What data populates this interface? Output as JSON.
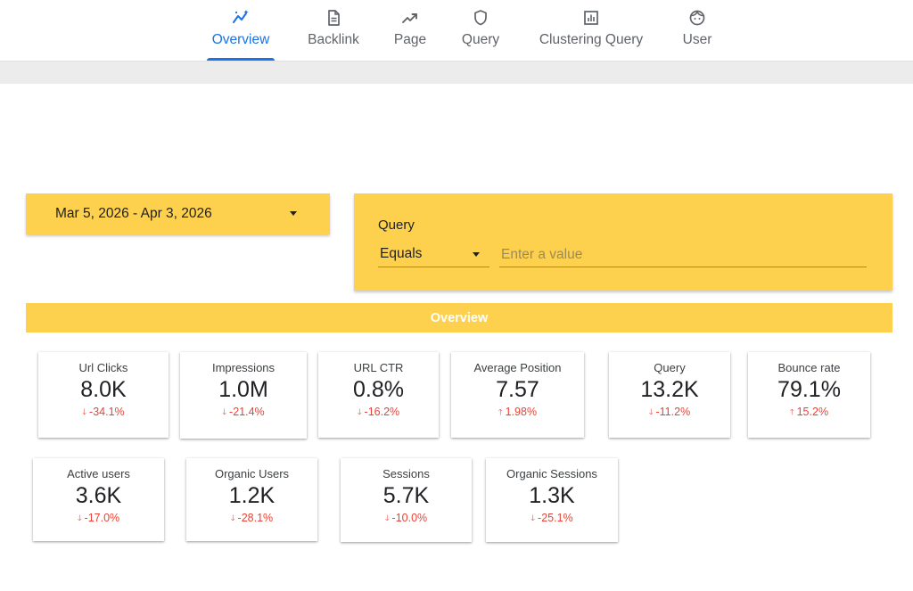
{
  "nav": {
    "tabs": [
      {
        "label": "Overview",
        "icon": "sparkline-icon",
        "active": true
      },
      {
        "label": "Backlink",
        "icon": "document-icon",
        "active": false
      },
      {
        "label": "Page",
        "icon": "trending-up-icon",
        "active": false
      },
      {
        "label": "Query",
        "icon": "shield-icon",
        "active": false
      },
      {
        "label": "Clustering Query",
        "icon": "bar-chart-box-icon",
        "active": false
      },
      {
        "label": "User",
        "icon": "face-icon",
        "active": false
      }
    ]
  },
  "filters": {
    "date_range": "Mar 5, 2026 - Apr 3, 2026",
    "query_title": "Query",
    "operator": "Equals",
    "value_placeholder": "Enter a value"
  },
  "section_title": "Overview",
  "colors": {
    "accent_yellow": "#fdd14e",
    "tab_active": "#1a73e8",
    "negative": "#ea4335"
  },
  "scorecards_row1": [
    {
      "label": "Url Clicks",
      "value": "8.0K",
      "change": "-34.1%",
      "direction": "down"
    },
    {
      "label": "Impressions",
      "value": "1.0M",
      "change": "-21.4%",
      "direction": "down"
    },
    {
      "label": "URL CTR",
      "value": "0.8%",
      "change": "-16.2%",
      "direction": "down"
    },
    {
      "label": "Average Position",
      "value": "7.57",
      "change": "1.98%",
      "direction": "up"
    },
    {
      "label": "Query",
      "value": "13.2K",
      "change": "-11.2%",
      "direction": "down"
    },
    {
      "label": "Bounce rate",
      "value": "79.1%",
      "change": "15.2%",
      "direction": "up"
    }
  ],
  "scorecards_row2": [
    {
      "label": "Active users",
      "value": "3.6K",
      "change": "-17.0%",
      "direction": "down"
    },
    {
      "label": "Organic Users",
      "value": "1.2K",
      "change": "-28.1%",
      "direction": "down"
    },
    {
      "label": "Sessions",
      "value": "5.7K",
      "change": "-10.0%",
      "direction": "down"
    },
    {
      "label": "Organic Sessions",
      "value": "1.3K",
      "change": "-25.1%",
      "direction": "down"
    }
  ]
}
